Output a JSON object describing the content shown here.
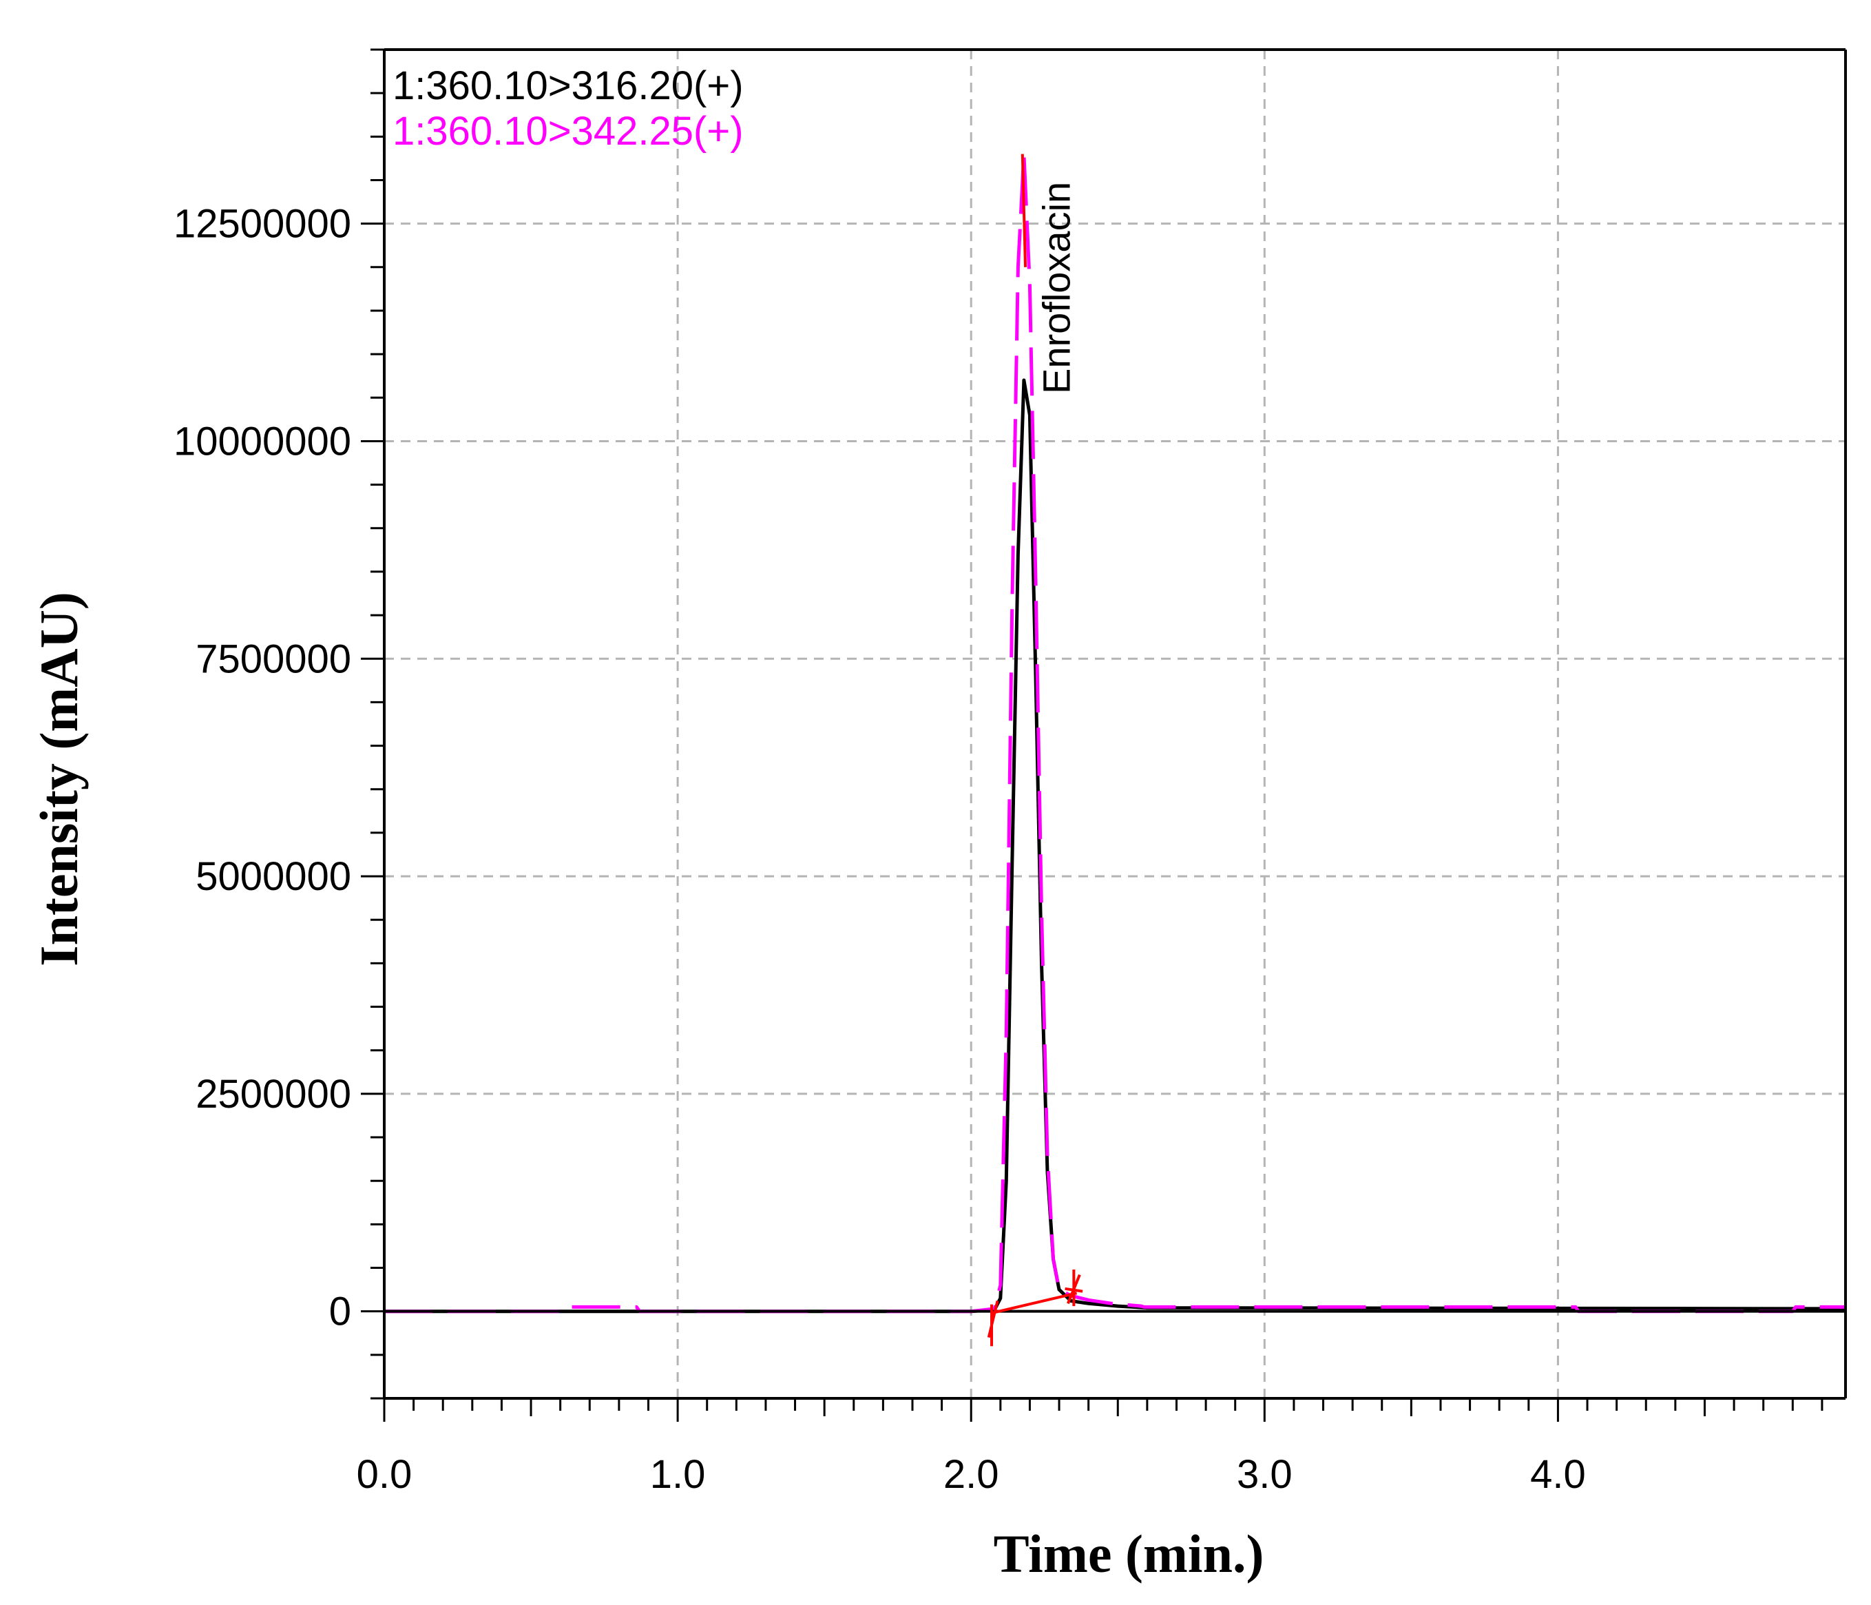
{
  "chart_data": {
    "type": "line",
    "xlabel": "Time (min.)",
    "ylabel": "Intensity (mAU)",
    "xlim": [
      0.0,
      4.98
    ],
    "ylim": [
      -1000000,
      14500000
    ],
    "x_ticks": [
      0.0,
      1.0,
      2.0,
      3.0,
      4.0
    ],
    "x_tick_labels": [
      "0.0",
      "1.0",
      "2.0",
      "3.0",
      "4.0"
    ],
    "y_ticks": [
      0,
      2500000,
      5000000,
      7500000,
      10000000,
      12500000
    ],
    "y_tick_labels": [
      "0",
      "2500000",
      "5000000",
      "7500000",
      "10000000",
      "12500000"
    ],
    "grid": true,
    "legend_position": "top-left",
    "series": [
      {
        "name": "1:360.10>316.20(+)",
        "color": "#000000",
        "x": [
          0.0,
          2.0,
          2.08,
          2.1,
          2.12,
          2.14,
          2.16,
          2.18,
          2.2,
          2.22,
          2.24,
          2.26,
          2.28,
          2.3,
          2.34,
          2.4,
          2.5,
          2.6,
          4.98
        ],
        "y": [
          0,
          0,
          20000,
          150000,
          1500000,
          5200000,
          8700000,
          10700000,
          10300000,
          7300000,
          4000000,
          1600000,
          600000,
          250000,
          120000,
          90000,
          60000,
          40000,
          30000
        ]
      },
      {
        "name": "1:360.10>342.25(+)",
        "color": "#ff00ff",
        "x": [
          0.0,
          0.62,
          0.63,
          0.86,
          0.87,
          2.0,
          2.08,
          2.1,
          2.12,
          2.14,
          2.16,
          2.18,
          2.2,
          2.22,
          2.24,
          2.26,
          2.28,
          2.3,
          2.34,
          2.4,
          2.48,
          2.58,
          2.59,
          4.06,
          4.07,
          4.8,
          4.81,
          4.98
        ],
        "y": [
          0,
          0,
          50000,
          50000,
          0,
          0,
          30000,
          300000,
          3200000,
          8200000,
          12000000,
          13300000,
          11800000,
          8400000,
          4600000,
          1800000,
          600000,
          250000,
          180000,
          130000,
          90000,
          60000,
          50000,
          50000,
          0,
          0,
          50000,
          50000
        ]
      }
    ],
    "annotations": [
      {
        "text": "Enrofloxacin",
        "x": 2.2,
        "orientation": "vertical"
      }
    ]
  }
}
